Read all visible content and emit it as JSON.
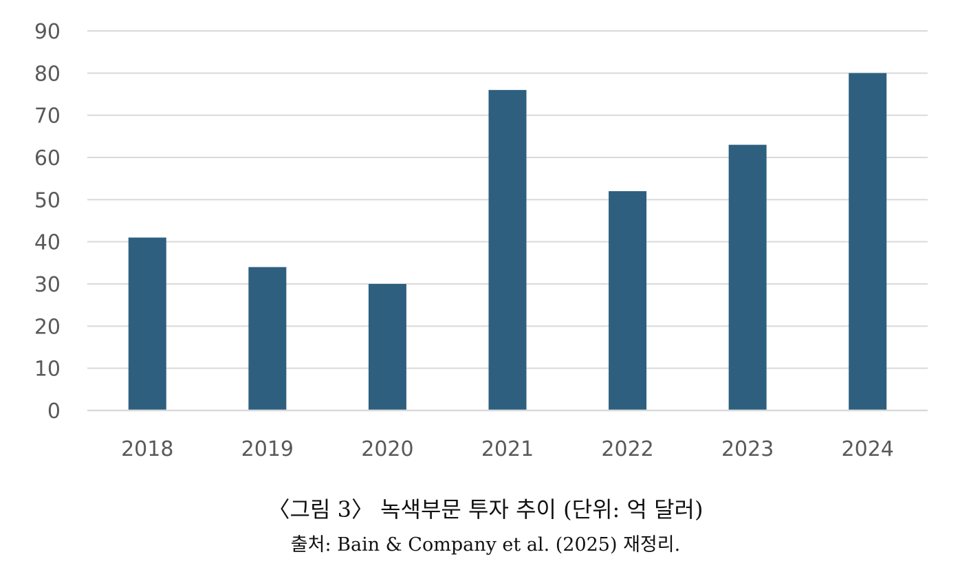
{
  "caption": {
    "title": "〈그림 3〉 녹색부문 투자 추이 (단위: 억 달러)",
    "source": "출처: Bain & Company et al. (2025) 재정리."
  },
  "colors": {
    "bar": "#2e5f7f",
    "grid": "#d9d9d9",
    "tick_text": "#595959"
  },
  "chart_data": {
    "type": "bar",
    "categories": [
      "2018",
      "2019",
      "2020",
      "2021",
      "2022",
      "2023",
      "2024"
    ],
    "values": [
      41,
      34,
      30,
      76,
      52,
      63,
      80
    ],
    "ylim": [
      0,
      90
    ],
    "yticks": [
      0,
      10,
      20,
      30,
      40,
      50,
      60,
      70,
      80,
      90
    ],
    "grid": true,
    "legend": "none"
  }
}
